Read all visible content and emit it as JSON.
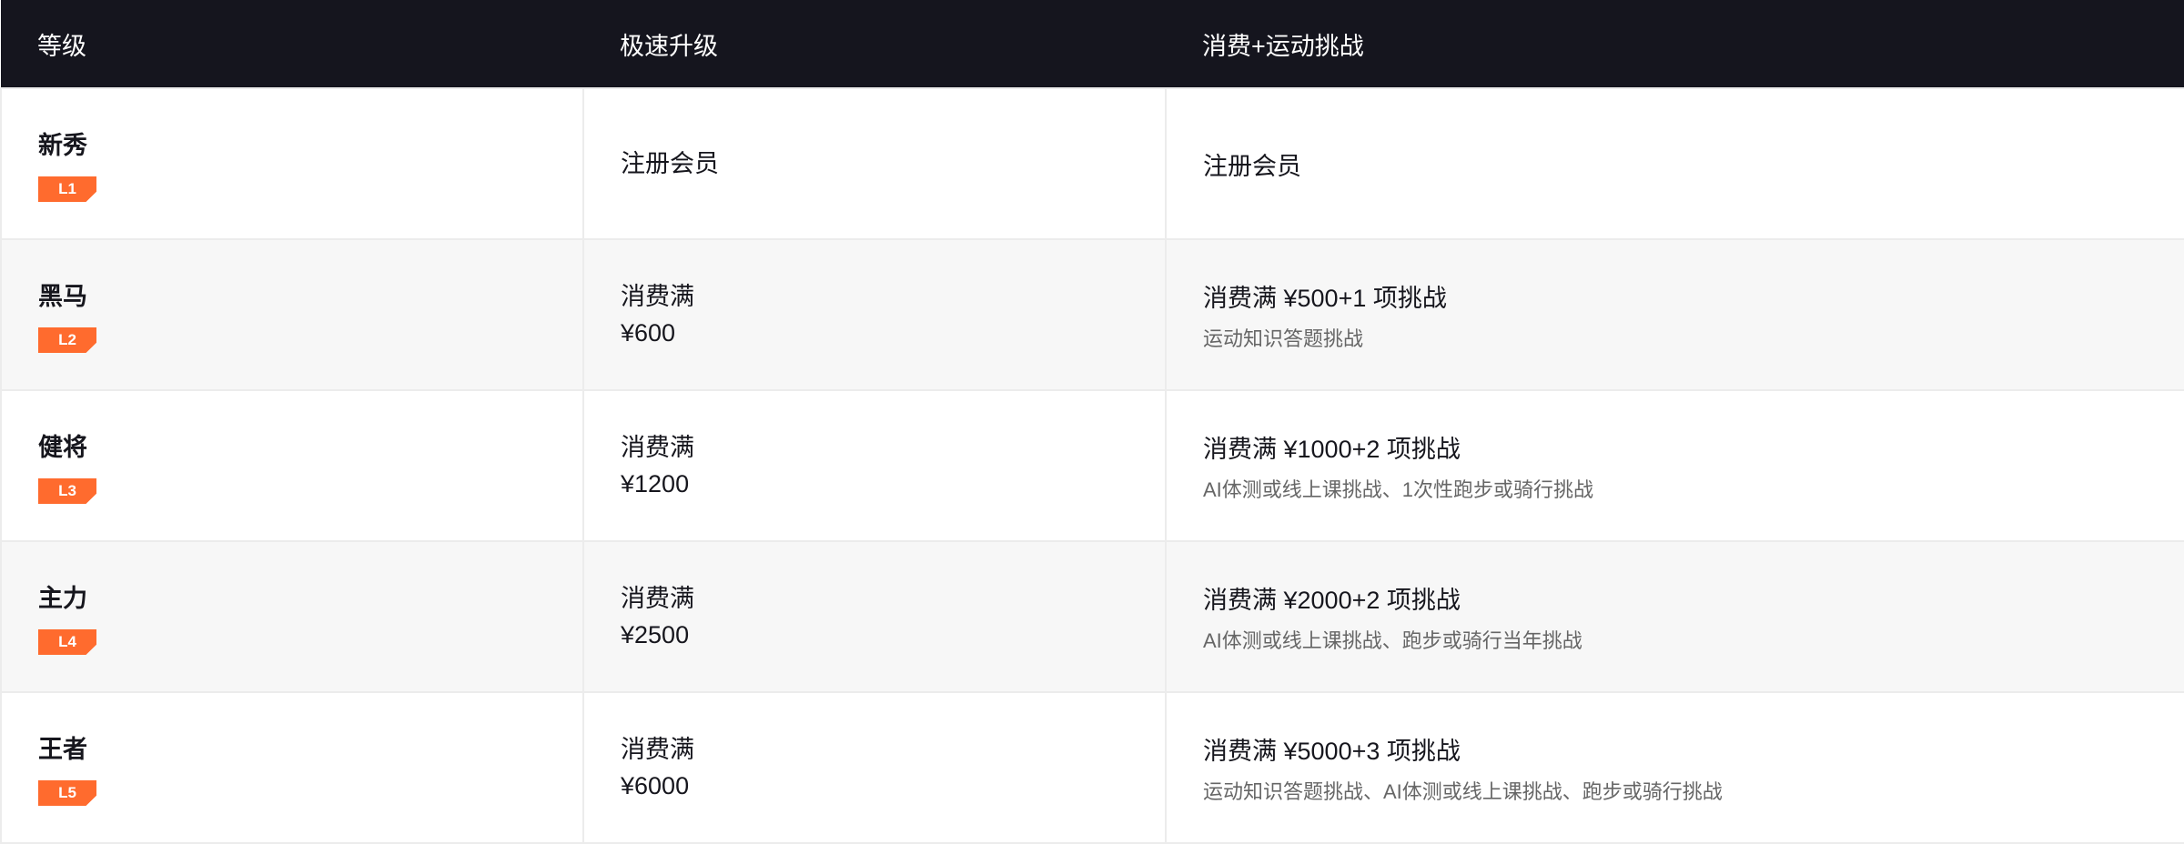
{
  "headers": [
    "等级",
    "极速升级",
    "消费+运动挑战"
  ],
  "colors": {
    "header_bg": "#15151e",
    "badge": "#ff6b2e",
    "row_alt": "#f7f7f7"
  },
  "rows": [
    {
      "name": "新秀",
      "badge": "L1",
      "fast": [
        "注册会员"
      ],
      "challenge": "注册会员",
      "detail": ""
    },
    {
      "name": "黑马",
      "badge": "L2",
      "fast": [
        "消费满",
        "¥600"
      ],
      "challenge": "消费满 ¥500+1 项挑战",
      "detail": "运动知识答题挑战"
    },
    {
      "name": "健将",
      "badge": "L3",
      "fast": [
        "消费满",
        "¥1200"
      ],
      "challenge": "消费满 ¥1000+2 项挑战",
      "detail": "AI体测或线上课挑战、1次性跑步或骑行挑战"
    },
    {
      "name": "主力",
      "badge": "L4",
      "fast": [
        "消费满",
        "¥2500"
      ],
      "challenge": "消费满 ¥2000+2 项挑战",
      "detail": "AI体测或线上课挑战、跑步或骑行当年挑战"
    },
    {
      "name": "王者",
      "badge": "L5",
      "fast": [
        "消费满",
        "¥6000"
      ],
      "challenge": "消费满 ¥5000+3 项挑战",
      "detail": "运动知识答题挑战、AI体测或线上课挑战、跑步或骑行挑战"
    }
  ]
}
